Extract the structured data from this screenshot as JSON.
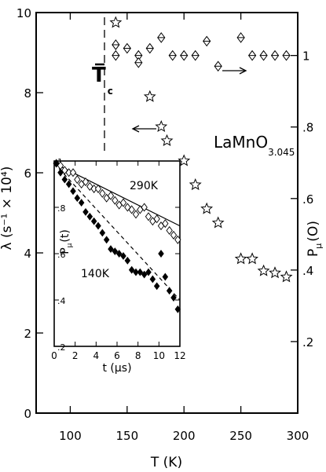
{
  "chart_data": [
    {
      "type": "scatter",
      "title": "LaMnO3.045",
      "title_main": "LaMnO",
      "title_sub": "3.045",
      "xlabel": "T (K)",
      "ylabel_left": "λ (s⁻¹ × 10⁴)",
      "ylabel_right_main": "P",
      "ylabel_right_sub": "μ",
      "ylabel_right_tail": "(O)",
      "xlim": [
        70,
        300
      ],
      "ylim_left": [
        0,
        10
      ],
      "ylim_right": [
        0,
        1.12
      ],
      "xticks": [
        100,
        150,
        200,
        250,
        300
      ],
      "yticks_left": [
        0,
        2,
        4,
        6,
        8,
        10
      ],
      "yticks_right": [
        0.2,
        0.4,
        0.6,
        0.8,
        1
      ],
      "ytick_labels_right": [
        ".2",
        ".4",
        ".6",
        ".8",
        "1"
      ],
      "tc_label_main": "T",
      "tc_label_sub": "c",
      "tc_value": 130,
      "series": [
        {
          "marker": "star",
          "axis": "left",
          "x": [
            140,
            170,
            180,
            185,
            200,
            210,
            220,
            230,
            250,
            260,
            270,
            280,
            290
          ],
          "y": [
            9.75,
            7.9,
            7.15,
            6.8,
            6.3,
            5.7,
            5.1,
            4.75,
            3.85,
            3.85,
            3.55,
            3.5,
            3.4
          ]
        },
        {
          "marker": "diamond",
          "axis": "right",
          "x": [
            140,
            140,
            150,
            160,
            160,
            170,
            180,
            190,
            200,
            210,
            220,
            230,
            250,
            260,
            270,
            280,
            290
          ],
          "y": [
            1.03,
            1.0,
            1.02,
            1.0,
            0.98,
            1.02,
            1.05,
            1.0,
            1.0,
            1.0,
            1.04,
            0.97,
            1.05,
            1.0,
            1.0,
            1.0,
            1.0
          ]
        }
      ]
    },
    {
      "type": "scatter",
      "title": "",
      "xlabel_main": "t (",
      "xlabel_unit": "μs",
      "xlabel_tail": ")",
      "ylabel_main": "P",
      "ylabel_sub": "μ",
      "ylabel_tail": "(t)",
      "xlim": [
        0,
        12
      ],
      "ylim": [
        0.2,
        1.0
      ],
      "xticks": [
        0,
        2,
        4,
        6,
        8,
        10,
        12
      ],
      "yticks": [
        0.2,
        0.4,
        0.6,
        0.8,
        1.0
      ],
      "ytick_labels": [
        ".2",
        ".4",
        ".6",
        ".8",
        "1"
      ],
      "series": [
        {
          "name": "290K",
          "marker": "diamond-open",
          "x": [
            0.2,
            0.6,
            1.0,
            1.4,
            1.8,
            2.2,
            2.6,
            3.0,
            3.4,
            3.8,
            4.2,
            4.6,
            5.0,
            5.4,
            5.8,
            6.2,
            6.6,
            7.0,
            7.4,
            7.8,
            8.2,
            8.6,
            9.0,
            9.4,
            9.8,
            10.2,
            10.6,
            11.0,
            11.4,
            11.8
          ],
          "y": [
            0.99,
            0.98,
            0.96,
            0.95,
            0.95,
            0.92,
            0.9,
            0.91,
            0.89,
            0.88,
            0.88,
            0.86,
            0.84,
            0.85,
            0.83,
            0.81,
            0.82,
            0.8,
            0.79,
            0.77,
            0.79,
            0.8,
            0.76,
            0.74,
            0.75,
            0.72,
            0.73,
            0.7,
            0.68,
            0.66
          ],
          "fit": [
            [
              0,
              0.99
            ],
            [
              12,
              0.72
            ]
          ],
          "fit_style": "solid"
        },
        {
          "name": "140K",
          "marker": "diamond-filled",
          "x": [
            0.2,
            0.6,
            1.0,
            1.4,
            1.8,
            2.2,
            2.6,
            3.0,
            3.4,
            3.8,
            4.2,
            4.6,
            5.0,
            5.4,
            5.8,
            6.2,
            6.6,
            7.0,
            7.4,
            7.8,
            8.2,
            8.6,
            9.0,
            9.4,
            9.8,
            10.2,
            10.6,
            11.0,
            11.4,
            11.8
          ],
          "y": [
            0.99,
            0.95,
            0.92,
            0.9,
            0.87,
            0.84,
            0.82,
            0.78,
            0.76,
            0.74,
            0.72,
            0.69,
            0.66,
            0.62,
            0.61,
            0.6,
            0.59,
            0.57,
            0.53,
            0.52,
            0.52,
            0.51,
            0.52,
            0.49,
            0.46,
            0.6,
            0.5,
            0.44,
            0.41,
            0.36
          ],
          "fit": [
            [
              0,
              0.99
            ],
            [
              12,
              0.4
            ]
          ],
          "fit_style": "dashed"
        }
      ]
    }
  ]
}
